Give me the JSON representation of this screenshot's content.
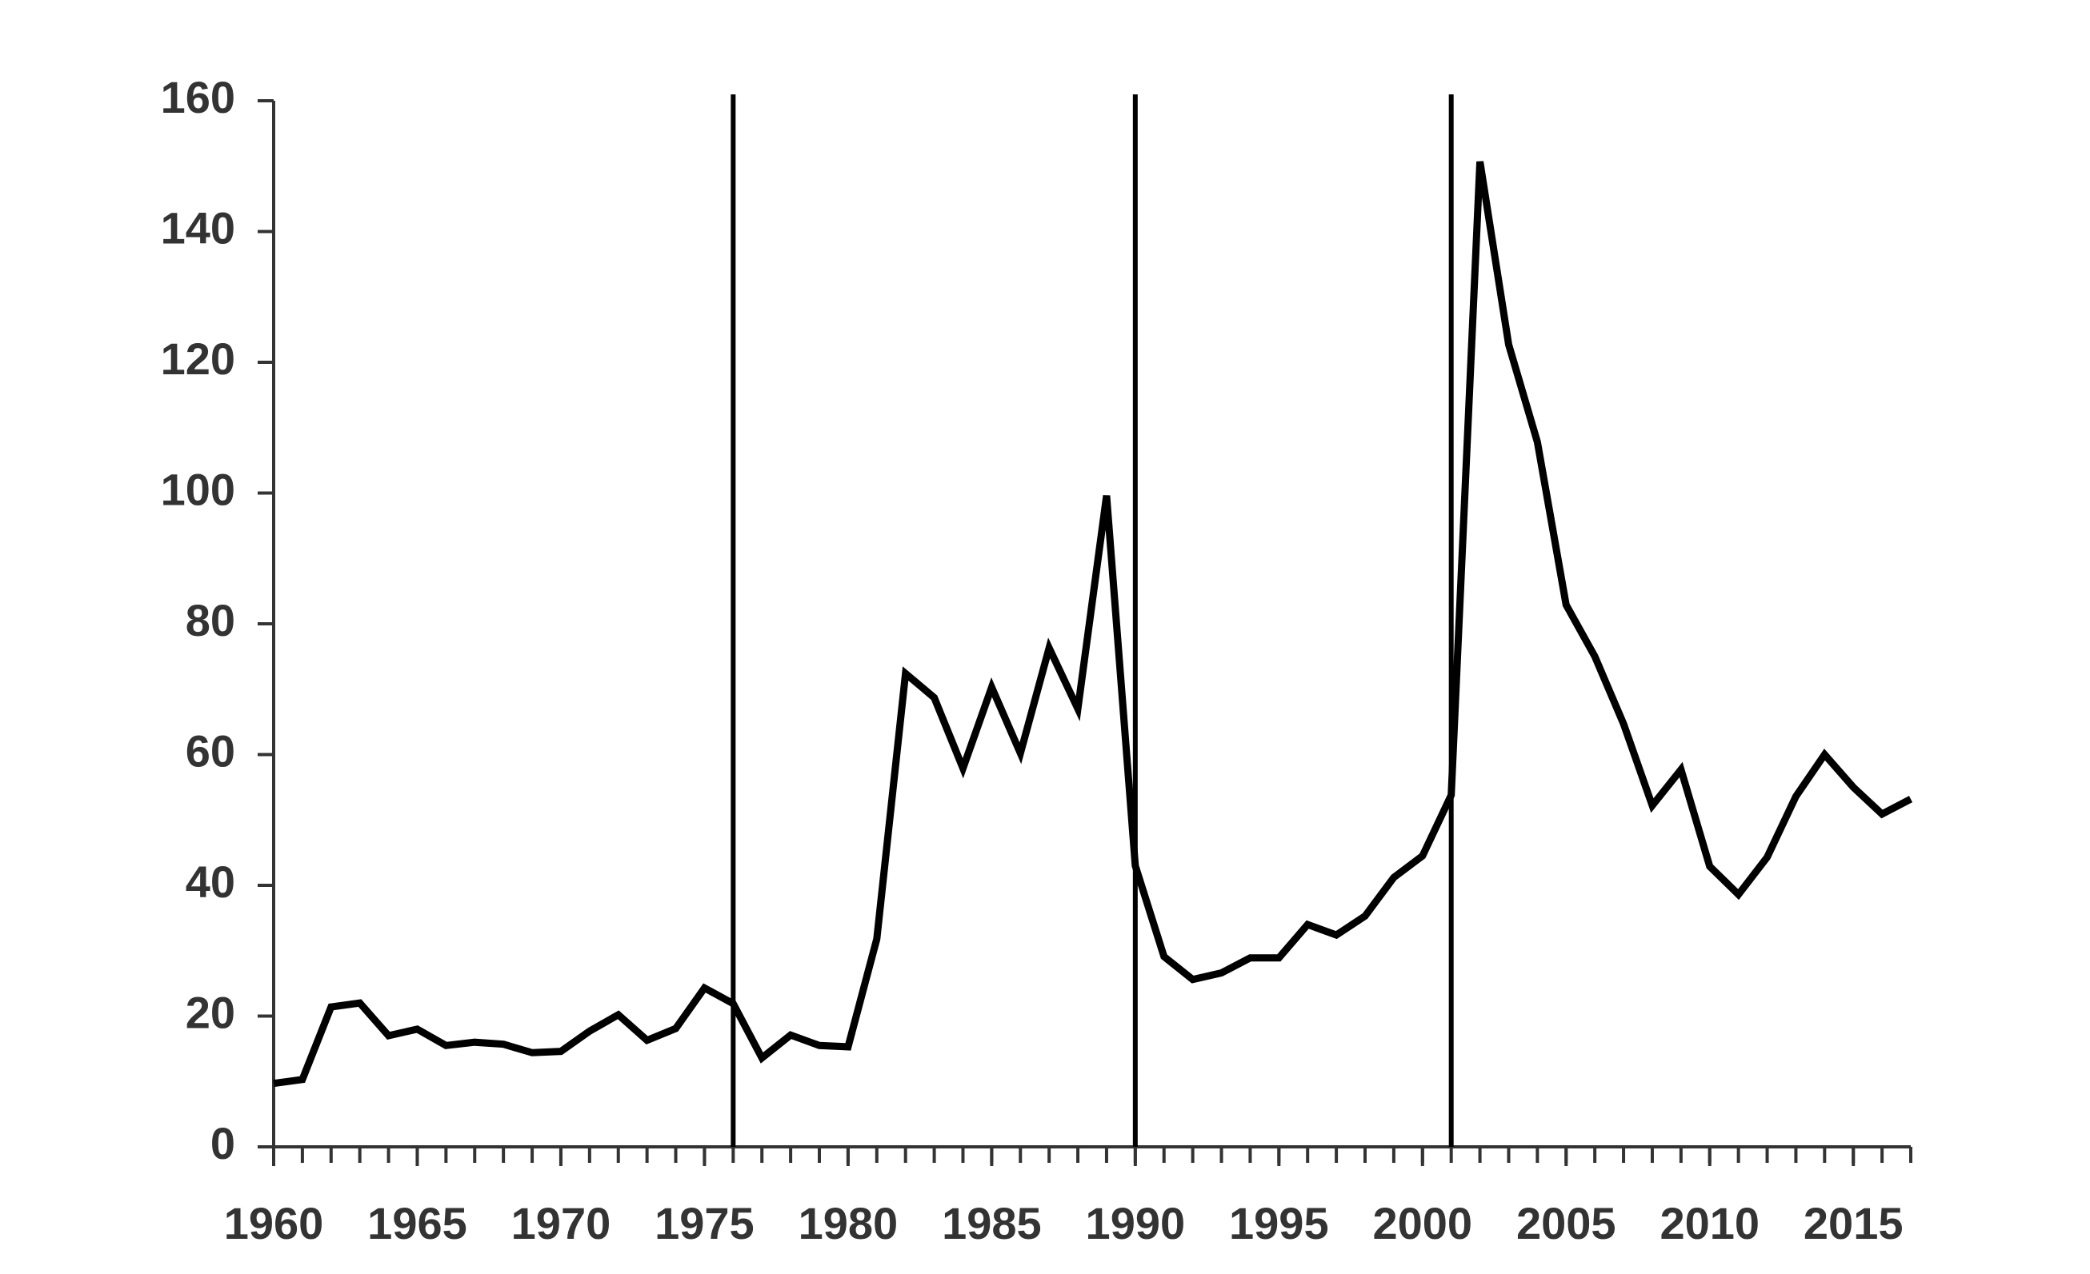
{
  "chart_data": {
    "type": "line",
    "x": [
      1960,
      1961,
      1962,
      1963,
      1964,
      1965,
      1966,
      1967,
      1968,
      1969,
      1970,
      1971,
      1972,
      1973,
      1974,
      1975,
      1976,
      1977,
      1978,
      1979,
      1980,
      1981,
      1982,
      1983,
      1984,
      1985,
      1986,
      1987,
      1988,
      1989,
      1990,
      1991,
      1992,
      1993,
      1994,
      1995,
      1996,
      1997,
      1998,
      1999,
      2000,
      2001,
      2002,
      2003,
      2004,
      2005,
      2006,
      2007,
      2008,
      2009,
      2010,
      2011,
      2012,
      2013,
      2014,
      2015,
      2016,
      2017
    ],
    "series": [
      {
        "color": "#000000",
        "values": [
          9.7,
          10.3,
          21.4,
          22,
          17,
          18,
          15.5,
          16,
          15.7,
          14.4,
          14.6,
          17.7,
          20.2,
          16.3,
          18.1,
          24.3,
          21.9,
          13.6,
          17.1,
          15.5,
          15.3,
          31.8,
          72.4,
          68.7,
          57.9,
          70.3,
          60.2,
          76.3,
          67,
          99.6,
          43,
          29.1,
          25.6,
          26.6,
          28.9,
          28.9,
          34,
          32.4,
          35.3,
          41.2,
          44.5,
          53.8,
          150.7,
          122.7,
          107.8,
          82.9,
          75,
          64.7,
          52.2,
          57.7,
          42.9,
          38.6,
          44.3,
          53.6,
          60,
          55,
          50.9,
          53.2
        ]
      }
    ],
    "xlim": [
      1960,
      2017
    ],
    "ylim": [
      0,
      160
    ],
    "xticks": [
      1960,
      1965,
      1970,
      1975,
      1980,
      1985,
      1990,
      1995,
      2000,
      2005,
      2010,
      2015
    ],
    "xminorticks": [
      1960,
      1961,
      1962,
      1963,
      1964,
      1965,
      1966,
      1967,
      1968,
      1969,
      1970,
      1971,
      1972,
      1973,
      1974,
      1975,
      1976,
      1977,
      1978,
      1979,
      1980,
      1981,
      1982,
      1983,
      1984,
      1985,
      1986,
      1987,
      1988,
      1989,
      1990,
      1991,
      1992,
      1993,
      1994,
      1995,
      1996,
      1997,
      1998,
      1999,
      2000,
      2001,
      2002,
      2003,
      2004,
      2005,
      2006,
      2007,
      2008,
      2009,
      2010,
      2011,
      2012,
      2013,
      2014,
      2015,
      2016,
      2017
    ],
    "yticks": [
      0,
      20,
      40,
      60,
      80,
      100,
      120,
      140,
      160
    ],
    "vlines": [
      1976,
      1990,
      2001
    ],
    "grid": false
  }
}
